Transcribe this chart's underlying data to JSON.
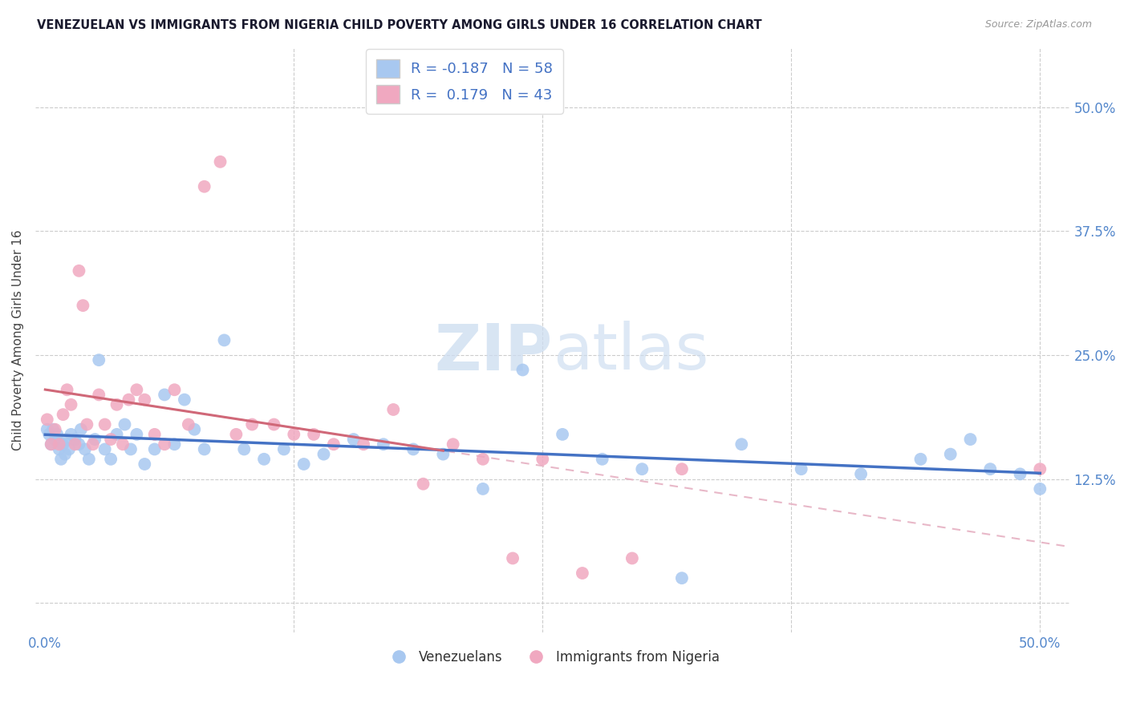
{
  "title": "VENEZUELAN VS IMMIGRANTS FROM NIGERIA CHILD POVERTY AMONG GIRLS UNDER 16 CORRELATION CHART",
  "source": "Source: ZipAtlas.com",
  "ylabel": "Child Poverty Among Girls Under 16",
  "blue_R": -0.187,
  "blue_N": 58,
  "pink_R": 0.179,
  "pink_N": 43,
  "blue_color": "#a8c8f0",
  "pink_color": "#f0a8c0",
  "blue_line_color": "#4472c4",
  "pink_line_color": "#d06878",
  "pink_dash_color": "#e8b8c8",
  "legend_label_blue": "Venezuelans",
  "legend_label_pink": "Immigrants from Nigeria",
  "watermark": "ZIPatlas",
  "blue_x": [
    0.001,
    0.002,
    0.003,
    0.004,
    0.005,
    0.006,
    0.007,
    0.008,
    0.009,
    0.01,
    0.011,
    0.012,
    0.013,
    0.015,
    0.017,
    0.018,
    0.02,
    0.022,
    0.025,
    0.027,
    0.03,
    0.033,
    0.036,
    0.04,
    0.043,
    0.046,
    0.05,
    0.055,
    0.06,
    0.065,
    0.07,
    0.075,
    0.08,
    0.09,
    0.1,
    0.11,
    0.12,
    0.13,
    0.14,
    0.155,
    0.17,
    0.185,
    0.2,
    0.22,
    0.24,
    0.26,
    0.28,
    0.3,
    0.32,
    0.35,
    0.38,
    0.41,
    0.44,
    0.455,
    0.465,
    0.475,
    0.49,
    0.5
  ],
  "blue_y": [
    17.5,
    17.0,
    16.0,
    17.5,
    16.5,
    17.0,
    15.5,
    14.5,
    16.0,
    15.0,
    16.5,
    15.5,
    17.0,
    16.5,
    16.0,
    17.5,
    15.5,
    14.5,
    16.5,
    24.5,
    15.5,
    14.5,
    17.0,
    18.0,
    15.5,
    17.0,
    14.0,
    15.5,
    21.0,
    16.0,
    20.5,
    17.5,
    15.5,
    26.5,
    15.5,
    14.5,
    15.5,
    14.0,
    15.0,
    16.5,
    16.0,
    15.5,
    15.0,
    11.5,
    23.5,
    17.0,
    14.5,
    13.5,
    2.5,
    16.0,
    13.5,
    13.0,
    14.5,
    15.0,
    16.5,
    13.5,
    13.0,
    11.5
  ],
  "pink_x": [
    0.001,
    0.003,
    0.005,
    0.007,
    0.009,
    0.011,
    0.013,
    0.015,
    0.017,
    0.019,
    0.021,
    0.024,
    0.027,
    0.03,
    0.033,
    0.036,
    0.039,
    0.042,
    0.046,
    0.05,
    0.055,
    0.06,
    0.065,
    0.072,
    0.08,
    0.088,
    0.096,
    0.104,
    0.115,
    0.125,
    0.135,
    0.145,
    0.16,
    0.175,
    0.19,
    0.205,
    0.22,
    0.235,
    0.25,
    0.27,
    0.295,
    0.32,
    0.5
  ],
  "pink_y": [
    18.5,
    16.0,
    17.5,
    16.0,
    19.0,
    21.5,
    20.0,
    16.0,
    33.5,
    30.0,
    18.0,
    16.0,
    21.0,
    18.0,
    16.5,
    20.0,
    16.0,
    20.5,
    21.5,
    20.5,
    17.0,
    16.0,
    21.5,
    18.0,
    42.0,
    44.5,
    17.0,
    18.0,
    18.0,
    17.0,
    17.0,
    16.0,
    16.0,
    19.5,
    12.0,
    16.0,
    14.5,
    4.5,
    14.5,
    3.0,
    4.5,
    13.5,
    13.5
  ]
}
